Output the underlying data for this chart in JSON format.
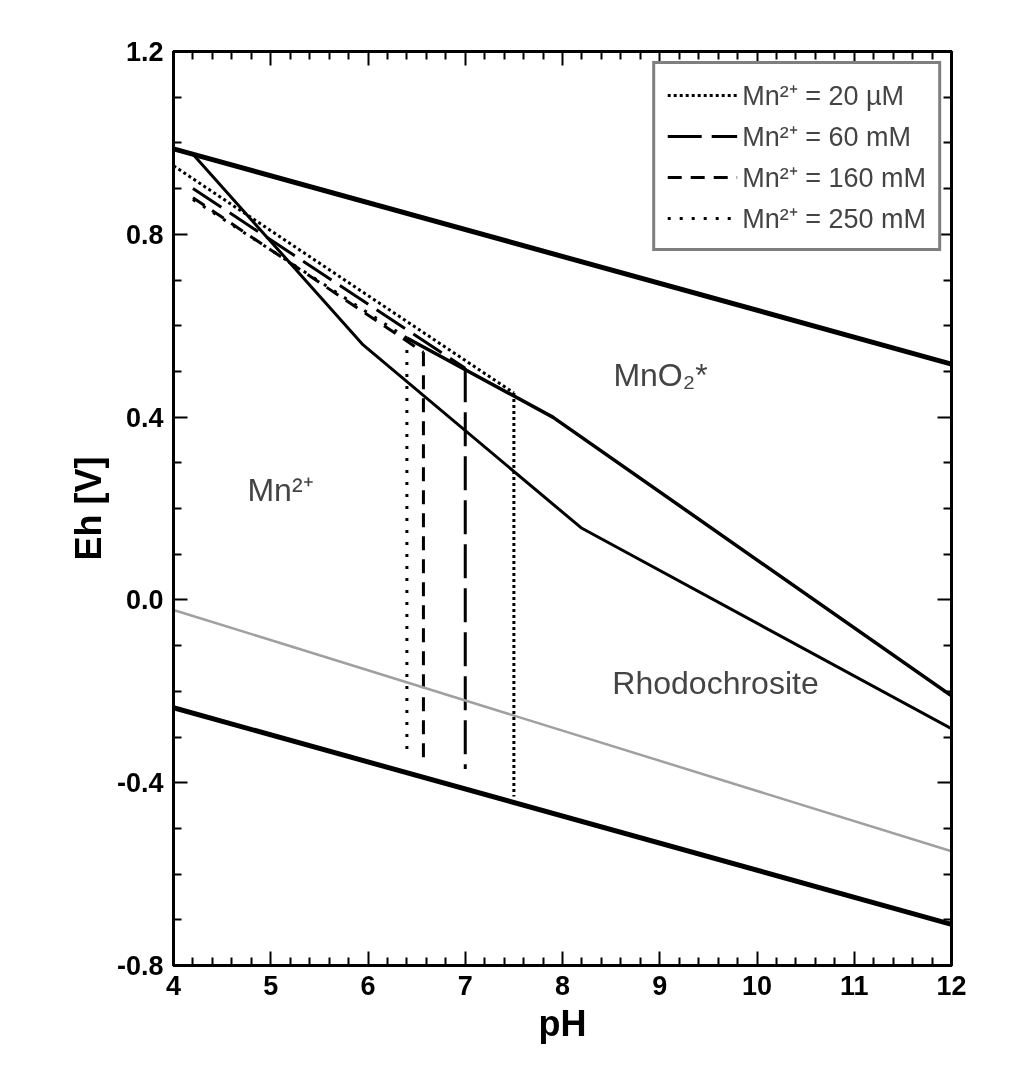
{
  "chart_data": {
    "type": "line",
    "xlabel": "pH",
    "ylabel": "Eh [V]",
    "xlim": [
      4,
      12
    ],
    "xticks": [
      4,
      5,
      6,
      7,
      8,
      9,
      10,
      11,
      12
    ],
    "ylim": [
      -0.8,
      1.2
    ],
    "yticks": [
      -0.8,
      -0.4,
      {
        "value": 0,
        "label": "0.0"
      },
      0.4,
      0.8,
      1.2
    ],
    "legend": "top right",
    "series": [
      {
        "name": "Mn²⁺ = 20 µM",
        "color": "#000000",
        "line_style": "dotted",
        "x": [
          4,
          7.5
        ],
        "values": [
          0.95,
          0.453
        ]
      },
      {
        "name": "Mn²⁺ = 60 mM",
        "color": "#000000",
        "line_style": "longdash",
        "x": [
          4.2,
          7.0
        ],
        "values": [
          0.9,
          0.507
        ]
      },
      {
        "name": "Mn²⁺ = 160 mM",
        "color": "#000000",
        "line_style": "dashed",
        "x": [
          4.2,
          6.57
        ],
        "values": [
          0.88,
          0.542
        ]
      },
      {
        "name": "Mn²⁺ = 250 mM",
        "color": "#000000",
        "line_style": "sparsedotted",
        "x": [
          4.2,
          6.4
        ],
        "values": [
          0.876,
          0.573
        ]
      },
      {
        "color": "#000000",
        "line_style": "dotted",
        "x": [
          7.5,
          7.5
        ],
        "values": [
          0.453,
          -0.43
        ]
      },
      {
        "color": "#000000",
        "line_style": "longdash",
        "x": [
          7.0,
          7.0
        ],
        "values": [
          0.507,
          -0.37
        ]
      },
      {
        "color": "#000000",
        "line_style": "dashed",
        "x": [
          6.57,
          6.57
        ],
        "values": [
          0.542,
          -0.35
        ]
      },
      {
        "color": "#000000",
        "line_style": "sparsedotted",
        "x": [
          6.4,
          6.4
        ],
        "values": [
          0.573,
          -0.335
        ]
      },
      {
        "color": "#000000",
        "line_style": "solid",
        "x": [
          6.4,
          7.9,
          12
        ],
        "values": [
          0.573,
          0.4,
          -0.21
        ]
      },
      {
        "color": "#000000",
        "line_style": "solid",
        "x": [
          4.2,
          5.95,
          8.19,
          12
        ],
        "values": [
          0.975,
          0.558,
          0.158,
          -0.282
        ]
      },
      {
        "color": "#000000",
        "line_style": "solid",
        "x": [
          4,
          12
        ],
        "values": [
          0.987,
          0.516
        ]
      },
      {
        "color": "#000000",
        "line_style": "solid",
        "x": [
          4,
          12
        ],
        "values": [
          -0.236,
          -0.71
        ]
      },
      {
        "color": "#a0a0a0",
        "line_style": "solid",
        "x": [
          4,
          12
        ],
        "values": [
          -0.022,
          -0.55
        ]
      }
    ],
    "annotations": [
      "Mn²⁺",
      "MnO₂*",
      "Rhodochrosite"
    ]
  }
}
